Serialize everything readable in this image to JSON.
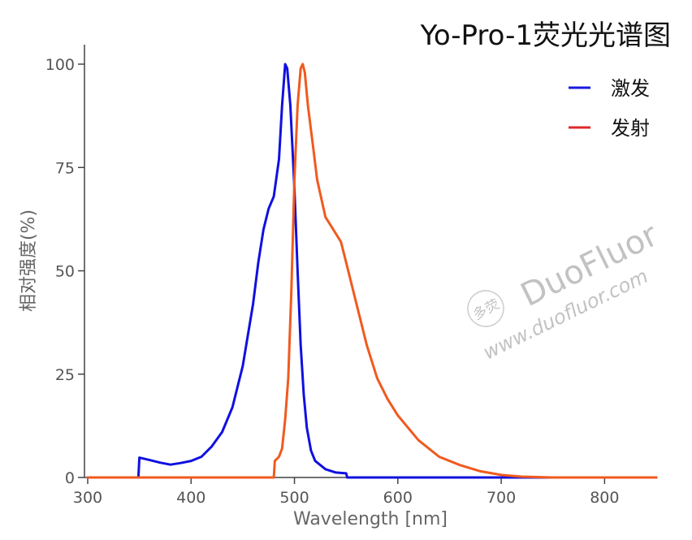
{
  "chart_data": {
    "type": "line",
    "title": "Yo-Pro-1荧光光谱图",
    "xlabel": "Wavelength [nm]",
    "ylabel": "相对强度(%)",
    "xlim": [
      300,
      850
    ],
    "ylim": [
      0,
      100
    ],
    "xticks": [
      "300",
      "400",
      "500",
      "600",
      "700",
      "800"
    ],
    "yticks": [
      "0",
      "25",
      "50",
      "75",
      "100"
    ],
    "grid": false,
    "legend_position": "top-right",
    "series": [
      {
        "name": "激发",
        "color": "#1010e0",
        "points": [
          [
            300,
            0
          ],
          [
            349,
            0
          ],
          [
            350,
            4.8
          ],
          [
            360,
            4.2
          ],
          [
            370,
            3.6
          ],
          [
            380,
            3.1
          ],
          [
            390,
            3.5
          ],
          [
            400,
            4.0
          ],
          [
            410,
            5.0
          ],
          [
            420,
            7.5
          ],
          [
            430,
            11
          ],
          [
            440,
            17
          ],
          [
            450,
            27
          ],
          [
            460,
            42
          ],
          [
            465,
            52
          ],
          [
            470,
            60
          ],
          [
            475,
            65
          ],
          [
            480,
            68
          ],
          [
            485,
            77
          ],
          [
            488,
            90
          ],
          [
            491,
            100
          ],
          [
            493,
            99
          ],
          [
            496,
            90
          ],
          [
            500,
            70
          ],
          [
            503,
            50
          ],
          [
            506,
            32
          ],
          [
            509,
            20
          ],
          [
            512,
            12
          ],
          [
            516,
            6.5
          ],
          [
            520,
            4
          ],
          [
            530,
            2
          ],
          [
            540,
            1.2
          ],
          [
            550,
            1.0
          ],
          [
            551,
            0
          ],
          [
            850,
            0
          ]
        ]
      },
      {
        "name": "发射",
        "color": "#f05a1e",
        "points": [
          [
            300,
            0
          ],
          [
            480,
            0
          ],
          [
            481,
            4
          ],
          [
            485,
            5
          ],
          [
            488,
            7
          ],
          [
            491,
            14
          ],
          [
            494,
            24
          ],
          [
            497,
            45
          ],
          [
            500,
            72
          ],
          [
            503,
            90
          ],
          [
            506,
            99
          ],
          [
            508,
            100
          ],
          [
            510,
            98
          ],
          [
            513,
            90
          ],
          [
            518,
            80
          ],
          [
            522,
            72
          ],
          [
            530,
            63
          ],
          [
            540,
            59
          ],
          [
            545,
            57
          ],
          [
            550,
            52
          ],
          [
            560,
            42
          ],
          [
            570,
            32
          ],
          [
            580,
            24
          ],
          [
            590,
            19
          ],
          [
            600,
            15
          ],
          [
            620,
            9
          ],
          [
            640,
            5
          ],
          [
            660,
            3
          ],
          [
            680,
            1.5
          ],
          [
            700,
            0.6
          ],
          [
            720,
            0.2
          ],
          [
            750,
            0
          ],
          [
            850,
            0
          ]
        ]
      }
    ]
  },
  "legend": {
    "items": [
      {
        "label": "激发",
        "color": "#1a1adf"
      },
      {
        "label": "发射",
        "color": "#e02828"
      }
    ]
  },
  "watermark": {
    "logo_text": "多荧",
    "brand": "DuoFluor",
    "url": "www.duofluor.com"
  }
}
